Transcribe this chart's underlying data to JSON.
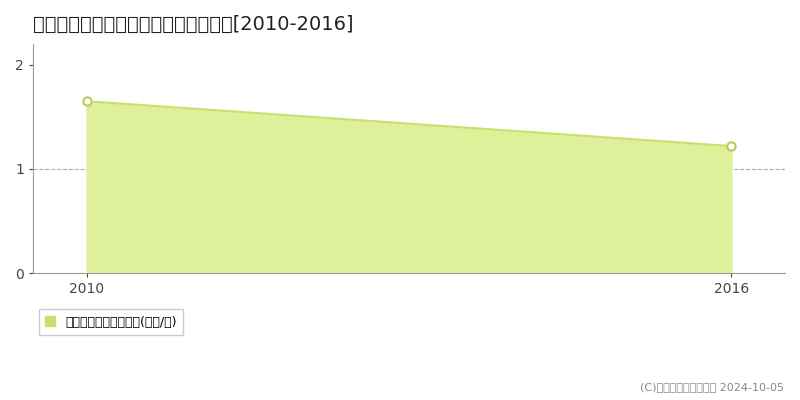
{
  "title": "三方上中郡若犭町新道　土地価格推移[2010-2016]",
  "years": [
    2010,
    2016
  ],
  "values": [
    1.65,
    1.22
  ],
  "xlim": [
    2009.5,
    2016.5
  ],
  "ylim": [
    0,
    2.2
  ],
  "yticks": [
    0,
    1,
    2
  ],
  "xticks": [
    2010,
    2016
  ],
  "line_color": "#c8e06e",
  "fill_color": "#dff09a",
  "marker_color": "#ffffff",
  "marker_edge_color": "#b8cc55",
  "grid_color": "#999999",
  "background_color": "#ffffff",
  "legend_label": "土地価格　平均坊単価(万円/坊)",
  "copyright_text": "(C)土地価格ドットコム 2024-10-05",
  "title_fontsize": 14,
  "tick_fontsize": 10,
  "legend_fontsize": 9,
  "copyright_fontsize": 8,
  "legend_marker_color": "#c8e06e"
}
